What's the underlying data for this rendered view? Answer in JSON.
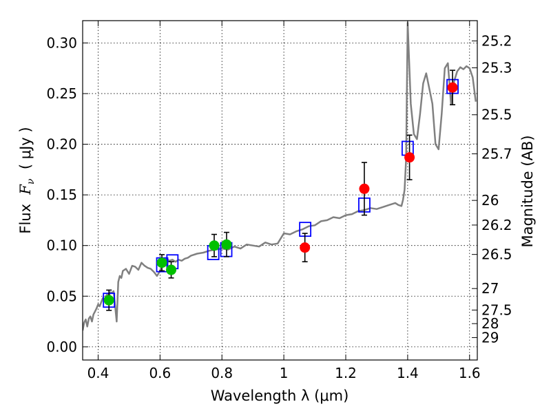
{
  "chart_data": {
    "type": "scatter",
    "xlabel": "Wavelength  λ (μm)",
    "ylabel": "Flux  F_ν  ( μJy )",
    "ylabel_parts": {
      "prefix": "Flux  ",
      "sym": "F",
      "sub": "ν",
      "suffix": "  ( μJy )"
    },
    "y2label": "Magnitude (AB)",
    "xlim": [
      0.35,
      1.625
    ],
    "ylim": [
      -0.013,
      0.322
    ],
    "grid": true,
    "x_ticks": [
      0.4,
      0.6,
      0.8,
      1.0,
      1.2,
      1.4,
      1.6
    ],
    "x_tick_labels": [
      "0.4",
      "0.6",
      "0.8",
      "1",
      "1.2",
      "1.4",
      "1.6"
    ],
    "y_ticks": [
      0.0,
      0.05,
      0.1,
      0.15,
      0.2,
      0.25,
      0.3
    ],
    "y_tick_labels": [
      "0.00",
      "0.05",
      "0.10",
      "0.15",
      "0.20",
      "0.25",
      "0.30"
    ],
    "y2_tick_labels": [
      "25.2",
      "25.3",
      "25.5",
      "25.7",
      "26",
      "26.2",
      "26.5",
      "27",
      "27.5",
      "28",
      "29"
    ],
    "series": [
      {
        "kind": "line",
        "color": "#808080",
        "x": [
          0.35,
          0.355,
          0.36,
          0.365,
          0.37,
          0.375,
          0.38,
          0.385,
          0.39,
          0.395,
          0.4,
          0.405,
          0.41,
          0.415,
          0.42,
          0.425,
          0.43,
          0.435,
          0.44,
          0.445,
          0.45,
          0.455,
          0.46,
          0.465,
          0.47,
          0.475,
          0.48,
          0.49,
          0.5,
          0.51,
          0.52,
          0.53,
          0.54,
          0.55,
          0.56,
          0.57,
          0.58,
          0.59,
          0.6,
          0.61,
          0.62,
          0.63,
          0.64,
          0.65,
          0.66,
          0.67,
          0.68,
          0.69,
          0.7,
          0.72,
          0.74,
          0.76,
          0.78,
          0.8,
          0.82,
          0.84,
          0.86,
          0.88,
          0.9,
          0.92,
          0.94,
          0.96,
          0.98,
          1.0,
          1.02,
          1.04,
          1.06,
          1.08,
          1.1,
          1.12,
          1.14,
          1.16,
          1.18,
          1.2,
          1.22,
          1.24,
          1.26,
          1.28,
          1.3,
          1.32,
          1.34,
          1.36,
          1.37,
          1.38,
          1.385,
          1.39,
          1.395,
          1.4,
          1.41,
          1.42,
          1.43,
          1.44,
          1.45,
          1.46,
          1.47,
          1.48,
          1.49,
          1.5,
          1.51,
          1.52,
          1.53,
          1.54,
          1.55,
          1.56,
          1.57,
          1.58,
          1.59,
          1.6,
          1.61,
          1.62
        ],
        "y": [
          0.016,
          0.024,
          0.027,
          0.02,
          0.028,
          0.03,
          0.025,
          0.032,
          0.035,
          0.038,
          0.042,
          0.04,
          0.044,
          0.048,
          0.046,
          0.05,
          0.052,
          0.05,
          0.054,
          0.053,
          0.055,
          0.04,
          0.025,
          0.064,
          0.07,
          0.068,
          0.075,
          0.077,
          0.072,
          0.08,
          0.079,
          0.076,
          0.083,
          0.08,
          0.078,
          0.077,
          0.074,
          0.07,
          0.075,
          0.082,
          0.087,
          0.085,
          0.086,
          0.084,
          0.086,
          0.085,
          0.087,
          0.088,
          0.09,
          0.092,
          0.093,
          0.095,
          0.096,
          0.097,
          0.096,
          0.099,
          0.097,
          0.101,
          0.1,
          0.099,
          0.103,
          0.101,
          0.102,
          0.112,
          0.111,
          0.114,
          0.116,
          0.119,
          0.12,
          0.124,
          0.125,
          0.128,
          0.127,
          0.13,
          0.131,
          0.134,
          0.135,
          0.137,
          0.136,
          0.138,
          0.14,
          0.142,
          0.14,
          0.139,
          0.145,
          0.155,
          0.185,
          0.32,
          0.24,
          0.21,
          0.205,
          0.23,
          0.26,
          0.27,
          0.255,
          0.24,
          0.2,
          0.195,
          0.23,
          0.275,
          0.28,
          0.24,
          0.262,
          0.272,
          0.276,
          0.274,
          0.277,
          0.275,
          0.266,
          0.242
        ]
      },
      {
        "kind": "open-square",
        "color": "#0000ff",
        "x": [
          0.435,
          0.607,
          0.64,
          0.772,
          0.814,
          1.069,
          1.26,
          1.4,
          1.545
        ],
        "y": [
          0.046,
          0.081,
          0.084,
          0.093,
          0.096,
          0.116,
          0.14,
          0.196,
          0.257
        ]
      },
      {
        "kind": "marker",
        "color": "#00c000",
        "x": [
          0.435,
          0.606,
          0.636,
          0.775,
          0.815
        ],
        "y": [
          0.046,
          0.083,
          0.076,
          0.1,
          0.101
        ],
        "yerr": [
          0.01,
          0.008,
          0.008,
          0.011,
          0.012
        ]
      },
      {
        "kind": "marker",
        "color": "#ff0000",
        "x": [
          1.068,
          1.26,
          1.406,
          1.545
        ],
        "y": [
          0.098,
          0.156,
          0.187,
          0.256
        ],
        "yerr": [
          0.014,
          0.026,
          0.022,
          0.017
        ]
      }
    ]
  }
}
